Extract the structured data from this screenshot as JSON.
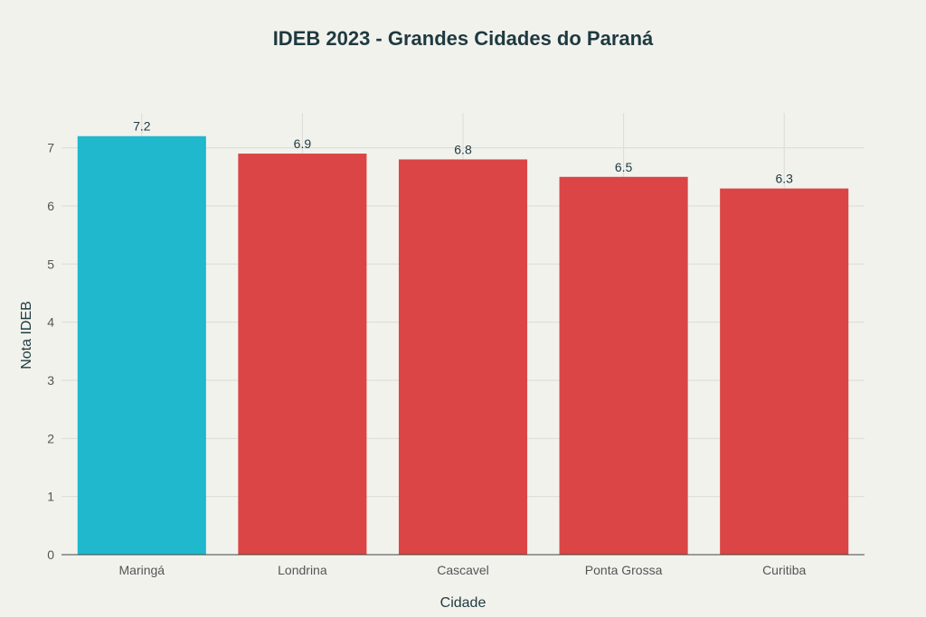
{
  "chart_data": {
    "type": "bar",
    "title": "IDEB 2023 - Grandes Cidades do Paraná",
    "xlabel": "Cidade",
    "ylabel": "Nota IDEB",
    "categories": [
      "Maringá",
      "Londrina",
      "Cascavel",
      "Ponta Grossa",
      "Curitiba"
    ],
    "values": [
      7.2,
      6.9,
      6.8,
      6.5,
      6.3
    ],
    "data_labels": [
      "7.2",
      "6.9",
      "6.8",
      "6.5",
      "6.3"
    ],
    "colors": [
      "#1fb8cd",
      "#db4545",
      "#db4545",
      "#db4545",
      "#db4545"
    ],
    "ylim": [
      0,
      7.6
    ],
    "yticks": [
      0,
      1,
      2,
      3,
      4,
      5,
      6,
      7
    ],
    "grid": true,
    "legend": "none"
  }
}
